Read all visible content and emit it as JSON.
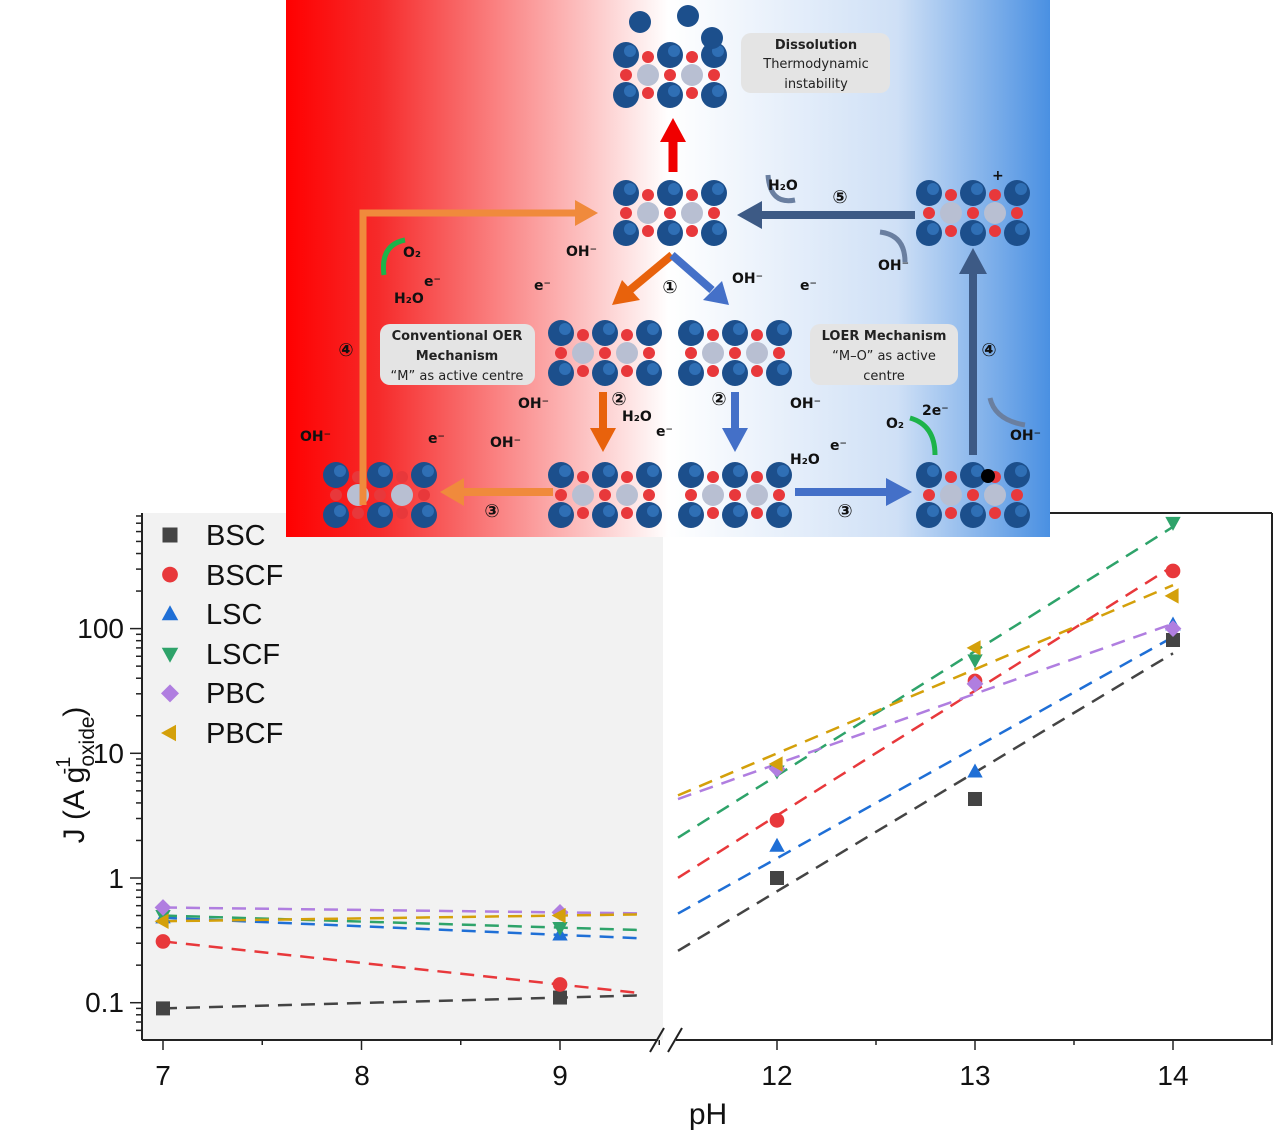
{
  "chart_data": {
    "type": "scatter",
    "title": "",
    "xlabel": "pH",
    "ylabel": "J (A g",
    "ylabel_sub": "oxide",
    "ylabel_sup": "-1",
    "ylabel_close": ")",
    "yscale": "log",
    "ylim": [
      0.05,
      850
    ],
    "x_broken_axis": true,
    "x_segments": [
      [
        6.89,
        9.52
      ],
      [
        11.45,
        14.5
      ]
    ],
    "xticks": [
      "7",
      "8",
      "9",
      "12",
      "13",
      "14"
    ],
    "yticks": [
      "0.1",
      "1",
      "10",
      "100"
    ],
    "grid": false,
    "legend_position": "top-left",
    "fit_lines": "dashed, per series, per axis segment",
    "x": [
      7,
      9,
      12,
      13,
      14
    ],
    "series": [
      {
        "name": "BSC",
        "marker": "square",
        "color": "#444444",
        "values": [
          0.09,
          0.11,
          1.0,
          4.3,
          81
        ]
      },
      {
        "name": "BSCF",
        "marker": "circle",
        "color": "#e8383b",
        "values": [
          0.31,
          0.14,
          2.9,
          38,
          290
        ]
      },
      {
        "name": "LSC",
        "marker": "triangle-up",
        "color": "#1f6fd6",
        "values": [
          0.48,
          0.35,
          1.8,
          7.1,
          107
        ]
      },
      {
        "name": "LSCF",
        "marker": "triangle-down",
        "color": "#2ea36a",
        "values": [
          0.5,
          0.4,
          7.2,
          56,
          710
        ]
      },
      {
        "name": "PBC",
        "marker": "diamond",
        "color": "#b07ee0",
        "values": [
          0.58,
          0.53,
          7.5,
          36,
          100
        ]
      },
      {
        "name": "PBCF",
        "marker": "triangle-left",
        "color": "#d4a00a",
        "values": [
          0.45,
          0.5,
          8.2,
          70,
          183
        ]
      }
    ]
  },
  "diagram": {
    "dissolution_title": "Dissolution",
    "dissolution_l1": "Thermodynamic",
    "dissolution_l2": "instability",
    "conv_l1": "Conventional OER",
    "conv_l2": "Mechanism",
    "conv_l3": "“M” as active centre",
    "loer_l1": "LOER Mechanism",
    "loer_l2": "“M–O” as active",
    "loer_l3": "centre",
    "species": {
      "h2o": "H₂O",
      "o2": "O₂",
      "oh": "OH⁻",
      "e": "e⁻",
      "two_e": "2e⁻",
      "plus": "+"
    },
    "steps": {
      "s1": "①",
      "s2": "②",
      "s3": "③",
      "s4": "④",
      "s5": "⑤"
    },
    "gradient_colors": [
      "#ff0000",
      "#ffffff",
      "#4a90e2"
    ]
  }
}
